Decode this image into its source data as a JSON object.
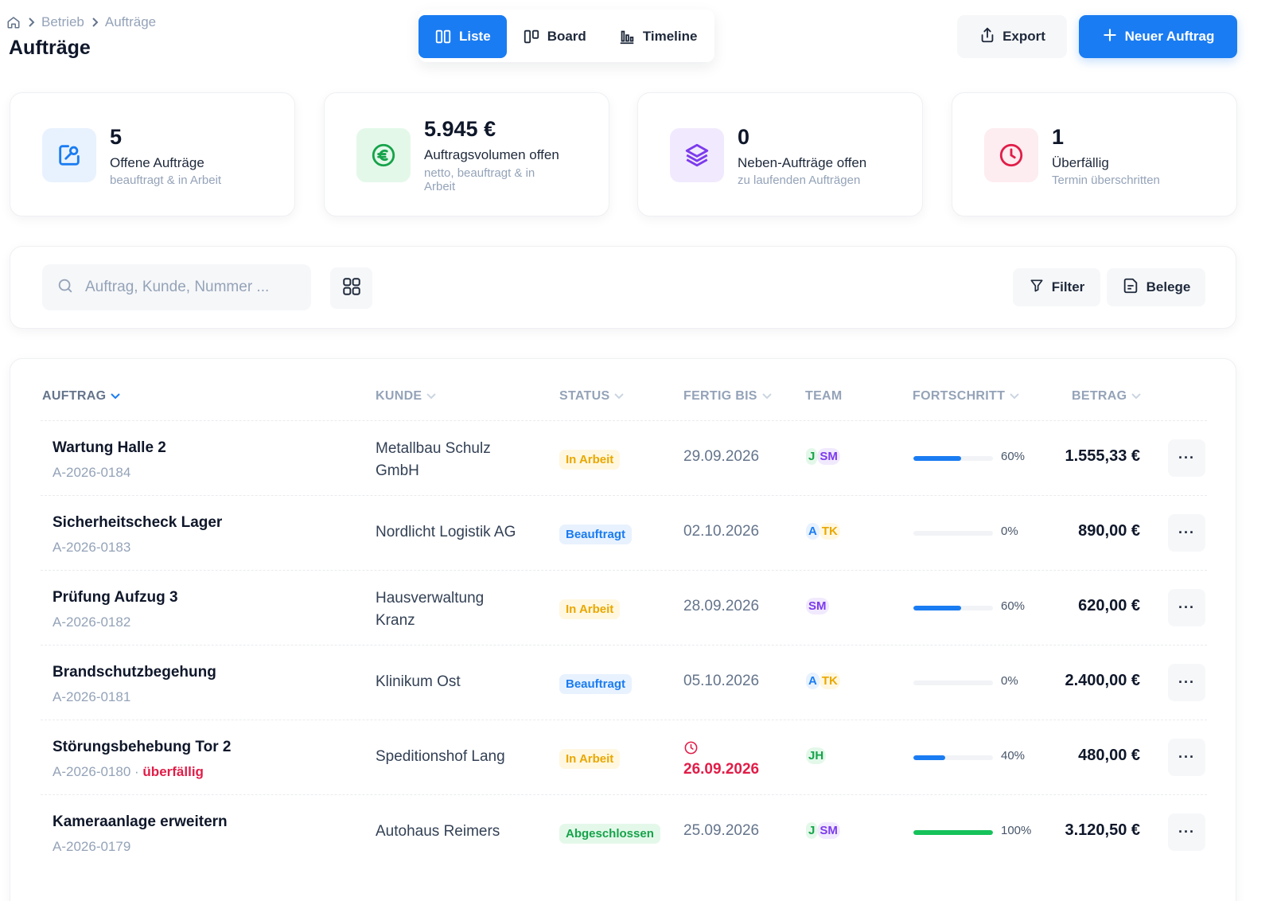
{
  "breadcrumb": {
    "items": [
      "Betrieb",
      "Aufträge"
    ]
  },
  "page": {
    "title": "Aufträge"
  },
  "views": {
    "list": "Liste",
    "board": "Board",
    "timeline": "Timeline",
    "active": "Liste"
  },
  "actions": {
    "export": "Export",
    "new_order": "Neuer Auftrag"
  },
  "kpis": [
    {
      "value": "5",
      "label": "Offene Aufträge",
      "sub": "beauftragt & in Arbeit",
      "icon": "edit-icon",
      "color": "#1a7cf2"
    },
    {
      "value": "5.945 €",
      "label": "Auftragsvolumen offen",
      "sub": "netto, beauftragt & in Arbeit",
      "icon": "euro-icon",
      "color": "#16a34a"
    },
    {
      "value": "0",
      "label": "Neben-Aufträge offen",
      "sub": "zu laufenden Aufträgen",
      "icon": "layers-icon",
      "color": "#7c3aed"
    },
    {
      "value": "1",
      "label": "Überfällig",
      "sub": "Termin überschritten",
      "icon": "clock-icon",
      "color": "#e11d48"
    }
  ],
  "toolbar": {
    "search_placeholder": "Auftrag, Kunde, Nummer ...",
    "filter": "Filter",
    "belege": "Belege"
  },
  "table": {
    "columns": [
      "AUFTRAG",
      "KUNDE",
      "STATUS",
      "FERTIG BIS",
      "TEAM",
      "FORTSCHRITT",
      "BETRAG"
    ],
    "rows": [
      {
        "title": "Wartung Halle 2",
        "number": "A-2026-0184",
        "overdue": "",
        "customer": "Metallbau Schulz GmbH",
        "status": "In Arbeit",
        "due": "29.09.2026",
        "team": [
          "J",
          "SM"
        ],
        "progress": 60,
        "progress_label": "60%",
        "amount": "1.555,33 €"
      },
      {
        "title": "Sicherheitscheck Lager",
        "number": "A-2026-0183",
        "overdue": "",
        "customer": "Nordlicht Logistik AG",
        "status": "Beauftragt",
        "due": "02.10.2026",
        "team": [
          "A",
          "TK"
        ],
        "progress": 0,
        "progress_label": "0%",
        "amount": "890,00 €"
      },
      {
        "title": "Prüfung Aufzug 3",
        "number": "A-2026-0182",
        "overdue": "",
        "customer": "Hausverwaltung Kranz",
        "status": "In Arbeit",
        "due": "28.09.2026",
        "team": [
          "SM"
        ],
        "progress": 60,
        "progress_label": "60%",
        "amount": "620,00 €"
      },
      {
        "title": "Brandschutzbegehung",
        "number": "A-2026-0181",
        "overdue": "",
        "customer": "Klinikum Ost",
        "status": "Beauftragt",
        "due": "05.10.2026",
        "team": [
          "A",
          "TK"
        ],
        "progress": 0,
        "progress_label": "0%",
        "amount": "2.400,00 €"
      },
      {
        "title": "Störungsbehebung Tor 2",
        "number": "A-2026-0180",
        "overdue": "überfällig",
        "customer": "Speditionshof Lang",
        "status": "In Arbeit",
        "due": "26.09.2026",
        "team": [
          "JH"
        ],
        "progress": 40,
        "progress_label": "40%",
        "amount": "480,00 €"
      },
      {
        "title": "Kameraanlage erweitern",
        "number": "A-2026-0179",
        "overdue": "",
        "customer": "Autohaus Reimers",
        "status": "Abgeschlossen",
        "due": "25.09.2026",
        "team": [
          "J",
          "SM"
        ],
        "progress": 100,
        "progress_label": "100%",
        "amount": "3.120,50 €"
      }
    ],
    "more_label": "···"
  }
}
